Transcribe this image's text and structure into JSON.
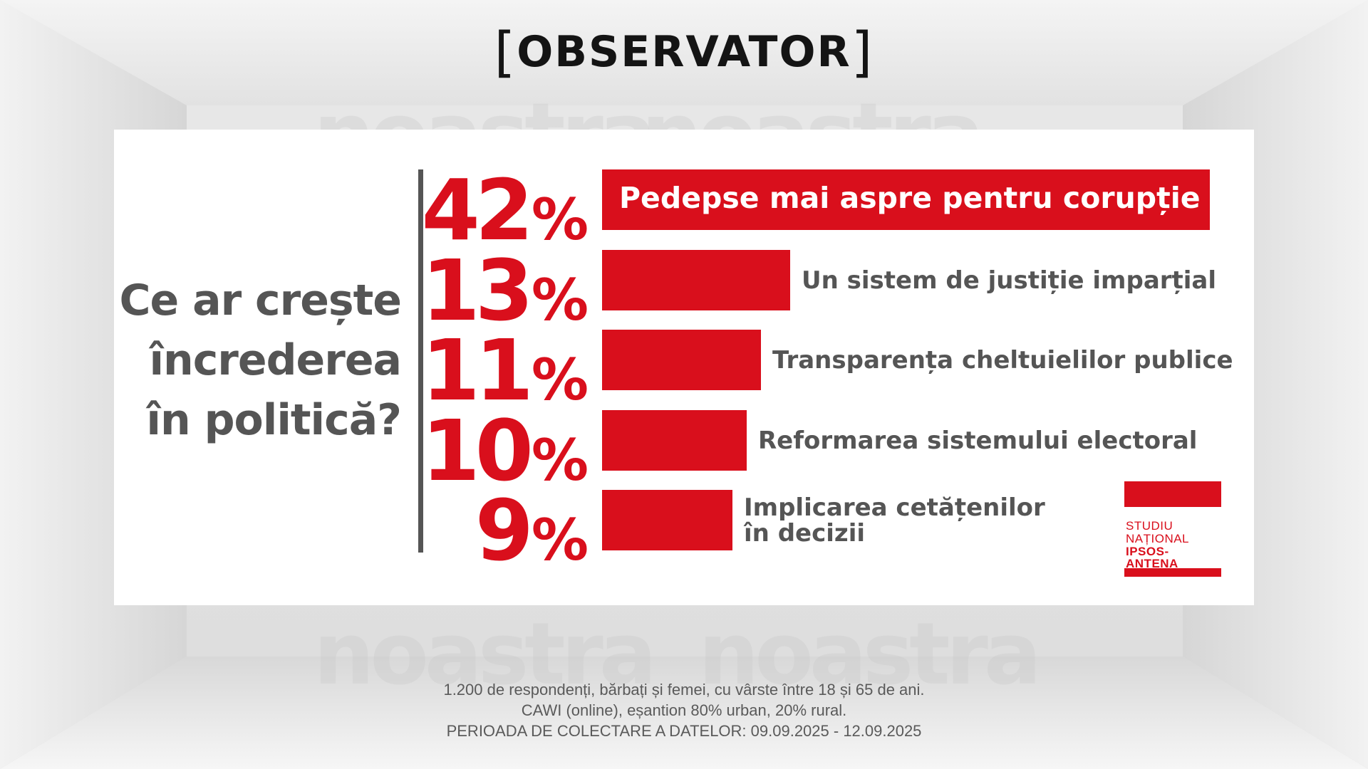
{
  "logo": {
    "text": "OBSERVATOR",
    "bracket_open": "[",
    "bracket_close": "]"
  },
  "watermark": "noastra",
  "question": {
    "lines": [
      "Ce ar crește",
      "încrederea",
      "în politică?"
    ]
  },
  "chart_data": {
    "type": "bar",
    "orientation": "horizontal",
    "title": "Ce ar crește încrederea în politică?",
    "categories": [
      "Pedepse mai aspre pentru corupție",
      "Un sistem de justiție imparțial",
      "Transparența cheltuielilor publice",
      "Reformarea sistemului electoral",
      "Implicarea cetățenilor în decizii"
    ],
    "values": [
      42,
      13,
      11,
      10,
      9
    ],
    "value_labels": [
      "42",
      "13",
      "11",
      "10",
      "9"
    ],
    "value_suffix": "%",
    "label_lines": [
      [
        "Pedepse mai aspre pentru corupție"
      ],
      [
        "Un sistem de justiție imparțial"
      ],
      [
        "Transparența cheltuielilor publice"
      ],
      [
        "Reformarea sistemului electoral"
      ],
      [
        "Implicarea cetățenilor",
        "în decizii"
      ]
    ],
    "grid": false,
    "legend": "none"
  },
  "badge": {
    "line1": "STUDIU",
    "line2": "NAȚIONAL",
    "line3": "IPSOS-ANTENA"
  },
  "footer": {
    "lines": [
      "1.200 de respondenți, bărbați și femei, cu vârste între 18 și 65 de ani.",
      "CAWI (online), eșantion 80% urban, 20% rural.",
      "PERIOADA DE COLECTARE A DATELOR: 09.09.2025 - 12.09.2025"
    ]
  },
  "colors": {
    "accent": "#d90f1c",
    "text": "#555555",
    "background": "#e6e6e6",
    "panel": "#ffffff"
  }
}
